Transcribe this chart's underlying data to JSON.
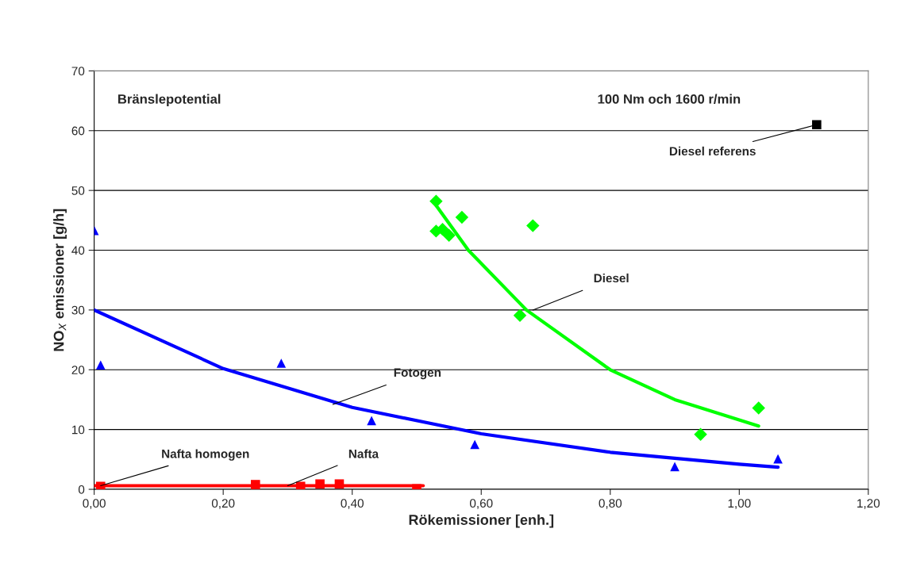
{
  "chart_data": {
    "type": "scatter",
    "xlabel": "Rökemissioner [enh.]",
    "ylabel": "NO$_{X}$ emissioner [g/h]",
    "xlim": [
      0,
      1.2
    ],
    "ylim": [
      0,
      70
    ],
    "xticks": [
      {
        "value": 0,
        "label": "0,00"
      },
      {
        "value": 0.2,
        "label": "0,20"
      },
      {
        "value": 0.4,
        "label": "0,40"
      },
      {
        "value": 0.6,
        "label": "0,60"
      },
      {
        "value": 0.8,
        "label": "0,80"
      },
      {
        "value": 1.0,
        "label": "1,00"
      },
      {
        "value": 1.2,
        "label": "1,20"
      }
    ],
    "yticks": [
      0,
      10,
      20,
      30,
      40,
      50,
      60,
      70
    ],
    "grid": "y",
    "series": [
      {
        "marker": "triangle",
        "color": "#0000ff",
        "x": [
          0.0,
          0.01,
          0.29,
          0.43,
          0.59,
          0.9,
          1.06
        ],
        "values": [
          43.3,
          20.8,
          21.1,
          11.5,
          7.5,
          3.8,
          5.1
        ]
      },
      {
        "marker": "diamond",
        "color": "#00ff00",
        "x": [
          0.53,
          0.53,
          0.54,
          0.55,
          0.57,
          0.68,
          0.66,
          0.94,
          1.03
        ],
        "values": [
          48.2,
          43.2,
          43.5,
          42.5,
          45.5,
          44.1,
          29.1,
          9.2,
          13.6
        ]
      },
      {
        "marker": "square",
        "color": "#000000",
        "x": [
          1.12
        ],
        "values": [
          61.0
        ]
      },
      {
        "marker": "square",
        "color": "#ff0000",
        "x": [
          0.01,
          0.25,
          0.32,
          0.35,
          0.38,
          0.5
        ],
        "values": [
          0.5,
          0.8,
          0.5,
          0.9,
          0.9,
          0.1
        ]
      },
      {
        "type": "line",
        "color": "#0000ff",
        "x": [
          0.0,
          0.2,
          0.4,
          0.6,
          0.8,
          1.0,
          1.06
        ],
        "values": [
          30.0,
          20.2,
          13.7,
          9.3,
          6.2,
          4.2,
          3.7
        ]
      },
      {
        "type": "line",
        "color": "#00ff00",
        "x": [
          0.53,
          0.58,
          0.67,
          0.8,
          0.9,
          1.03
        ],
        "values": [
          47.5,
          40.0,
          30.0,
          20.0,
          15.0,
          10.6
        ]
      },
      {
        "type": "line",
        "color": "#ff0000",
        "x": [
          0.0,
          0.51
        ],
        "values": [
          0.6,
          0.6
        ]
      }
    ],
    "annotations": [
      "Bränslepotential",
      "100 Nm och 1600 r/min",
      {
        "text": "Nafta homogen",
        "x": 0.01,
        "y": 0.6
      },
      {
        "text": "Nafta",
        "x": 0.3,
        "y": 0.6
      },
      {
        "text": "Fotogen",
        "x": 0.37,
        "y": 14.2
      },
      {
        "text": "Diesel",
        "x": 0.68,
        "y": 30.0
      },
      {
        "text": "Diesel referens",
        "x": 1.12,
        "y": 61.0
      }
    ]
  }
}
